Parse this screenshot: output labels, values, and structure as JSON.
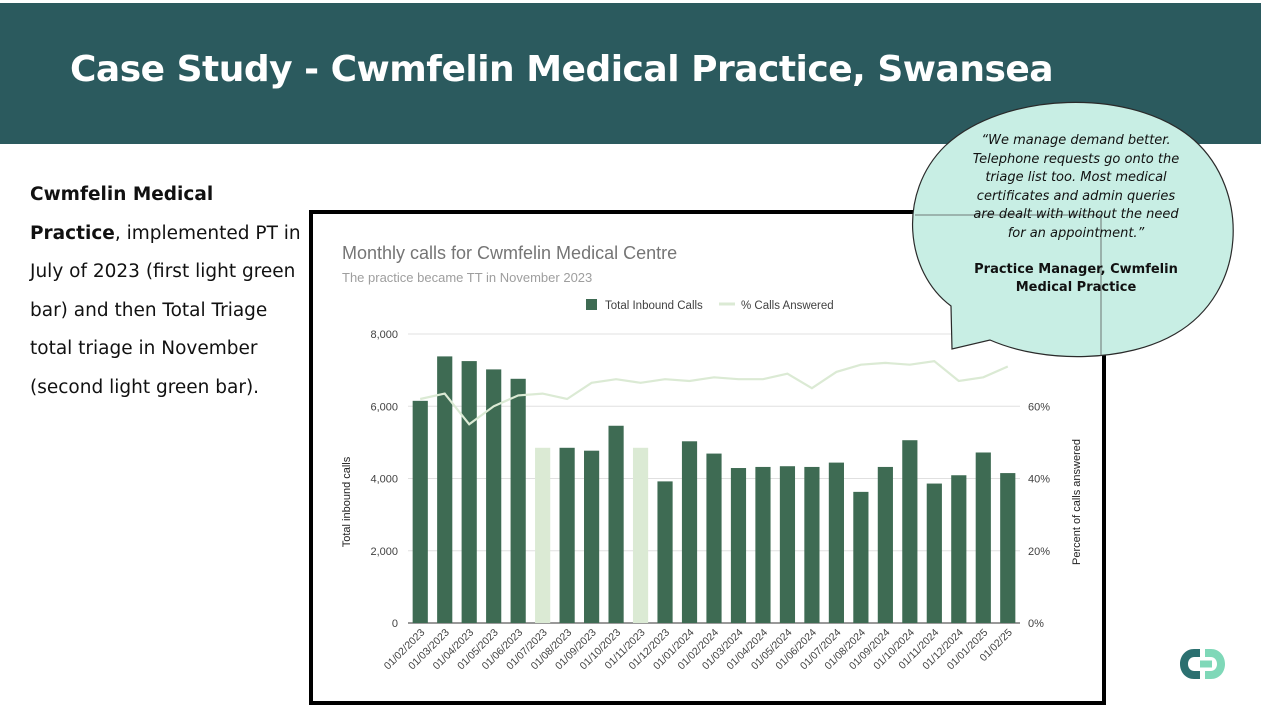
{
  "slide": {
    "title": "Case Study - Cwmfelin Medical Practice, Swansea",
    "body_bold": "Cwmfelin Medical Practice",
    "body_rest": ", implemented PT in July of 2023 (first light green bar) and then Total Triage total triage in November (second light green bar).",
    "quote": "“We manage demand better. Telephone requests go onto the triage list too. Most medical certificates and admin queries are dealt with without the need for an appointment.”",
    "quote_attribution": "Practice Manager, Cwmfelin Medical Practice"
  },
  "colors": {
    "header_bg": "#2b5a5e",
    "bar_dark": "#3e6b53",
    "bar_light": "#dbead4",
    "line": "#dbead4",
    "bubble_fill": "#c8eee4",
    "logo_dark": "#2b7070",
    "logo_light": "#7fd8b8"
  },
  "chart_data": {
    "type": "bar",
    "title": "Monthly calls for Cwmfelin Medical Centre",
    "subtitle": "The practice became TT in November 2023",
    "categories": [
      "01/02/2023",
      "01/03/2023",
      "01/04/2023",
      "01/05/2023",
      "01/06/2023",
      "01/07/2023",
      "01/08/2023",
      "01/09/2023",
      "01/10/2023",
      "01/11/2023",
      "01/12/2023",
      "01/01/2024",
      "01/02/2024",
      "01/03/2024",
      "01/04/2024",
      "01/05/2024",
      "01/06/2024",
      "01/07/2024",
      "01/08/2024",
      "01/09/2024",
      "01/10/2024",
      "01/11/2024",
      "01/12/2024",
      "01/01/2025",
      "01/02/25"
    ],
    "series": [
      {
        "name": "Total Inbound Calls",
        "axis": "left",
        "type": "bar",
        "values": [
          6150,
          7380,
          7250,
          7020,
          6760,
          4850,
          4850,
          4770,
          5460,
          4850,
          3920,
          5030,
          4690,
          4290,
          4320,
          4340,
          4320,
          4440,
          3630,
          4320,
          5060,
          3860,
          4090,
          4720,
          4150
        ],
        "highlighted_indices": [
          5,
          9
        ]
      },
      {
        "name": "% Calls Answered",
        "axis": "right",
        "type": "line",
        "values": [
          62,
          63.5,
          55,
          60,
          63,
          63.5,
          62,
          66.5,
          67.5,
          66.5,
          67.5,
          67,
          68,
          67.5,
          67.5,
          69,
          65,
          69.5,
          71.5,
          72,
          71.5,
          72.5,
          67,
          68,
          71
        ]
      }
    ],
    "ylabel": "Total inbound calls",
    "y2label": "Percent of calls answered",
    "ylim": [
      0,
      8000
    ],
    "yticks": [
      "0",
      "2,000",
      "4,000",
      "6,000",
      "8,000"
    ],
    "ytick_values": [
      0,
      2000,
      4000,
      6000,
      8000
    ],
    "y2lim": [
      0,
      80
    ],
    "y2ticks": [
      "0%",
      "20%",
      "40%",
      "60%"
    ],
    "y2tick_values": [
      0,
      20,
      40,
      60
    ],
    "legend": [
      "Total Inbound Calls",
      "% Calls Answered"
    ],
    "legend_position": "top-center"
  }
}
